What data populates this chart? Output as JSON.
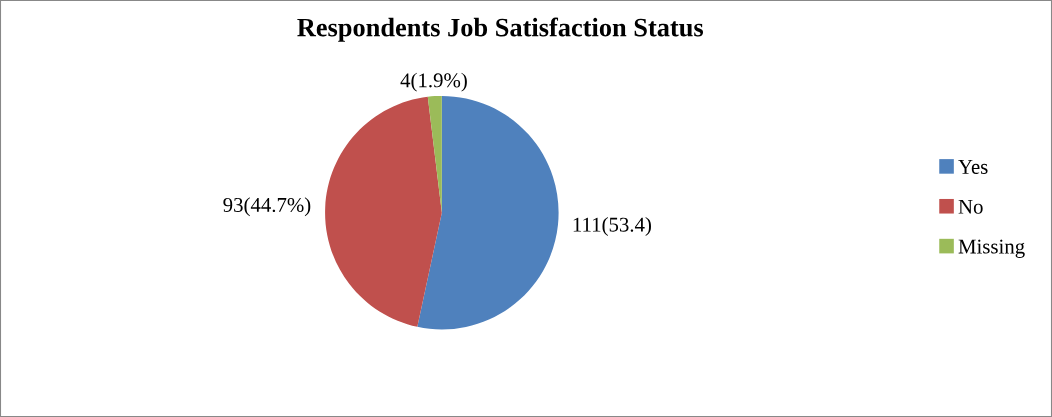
{
  "chart_data": {
    "type": "pie",
    "title": "Respondents Job Satisfaction Status",
    "categories": [
      "Yes",
      "No",
      "Missing"
    ],
    "values": [
      111,
      93,
      4
    ],
    "colors": [
      "#4f81bd",
      "#c0504d",
      "#9bbb59"
    ],
    "value_labels": [
      "111(53.4)",
      "93(44.7%)",
      "4(1.9%)"
    ],
    "legend": "right"
  }
}
